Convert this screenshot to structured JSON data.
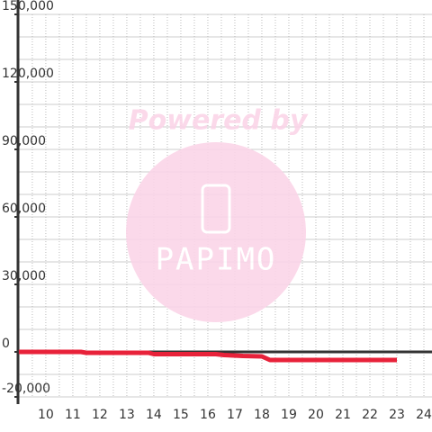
{
  "chart_data": {
    "type": "line",
    "x": [
      9,
      11.3,
      11.5,
      13.8,
      14,
      16.3,
      16.6,
      17.3,
      18,
      18.3,
      23
    ],
    "series": [
      {
        "color": "#e8223a",
        "values": [
          0,
          0,
          -400,
          -400,
          -1000,
          -1000,
          -1400,
          -1800,
          -2000,
          -3600,
          -3600
        ]
      }
    ],
    "xlim": [
      8.97,
      24.3
    ],
    "ylim": [
      -20000,
      150000
    ],
    "xticks": [
      10,
      11,
      12,
      13,
      14,
      15,
      16,
      17,
      18,
      19,
      20,
      21,
      22,
      23,
      24
    ],
    "yticks": [
      {
        "value": -20000,
        "label": "-20,000"
      },
      0,
      {
        "value": 30000,
        "label": "30,000"
      },
      {
        "value": 60000,
        "label": "60,000"
      },
      {
        "value": 90000,
        "label": "90,000"
      },
      {
        "value": 120000,
        "label": "120,000"
      },
      {
        "value": 150000,
        "label": "150,000"
      }
    ],
    "minor_yticks": [
      -10000,
      10000,
      20000,
      40000,
      50000,
      70000,
      80000,
      100000,
      110000,
      130000,
      140000
    ],
    "minor_xticks": [
      9.5,
      10.5,
      11.5,
      12.5,
      13.5,
      14.5,
      15.5,
      16.5,
      17.5,
      18.5,
      19.5,
      20.5,
      21.5,
      22.5,
      23.5
    ],
    "grid": true
  },
  "watermark": {
    "tagline": "Powered by",
    "brand": "PAPIMO"
  }
}
